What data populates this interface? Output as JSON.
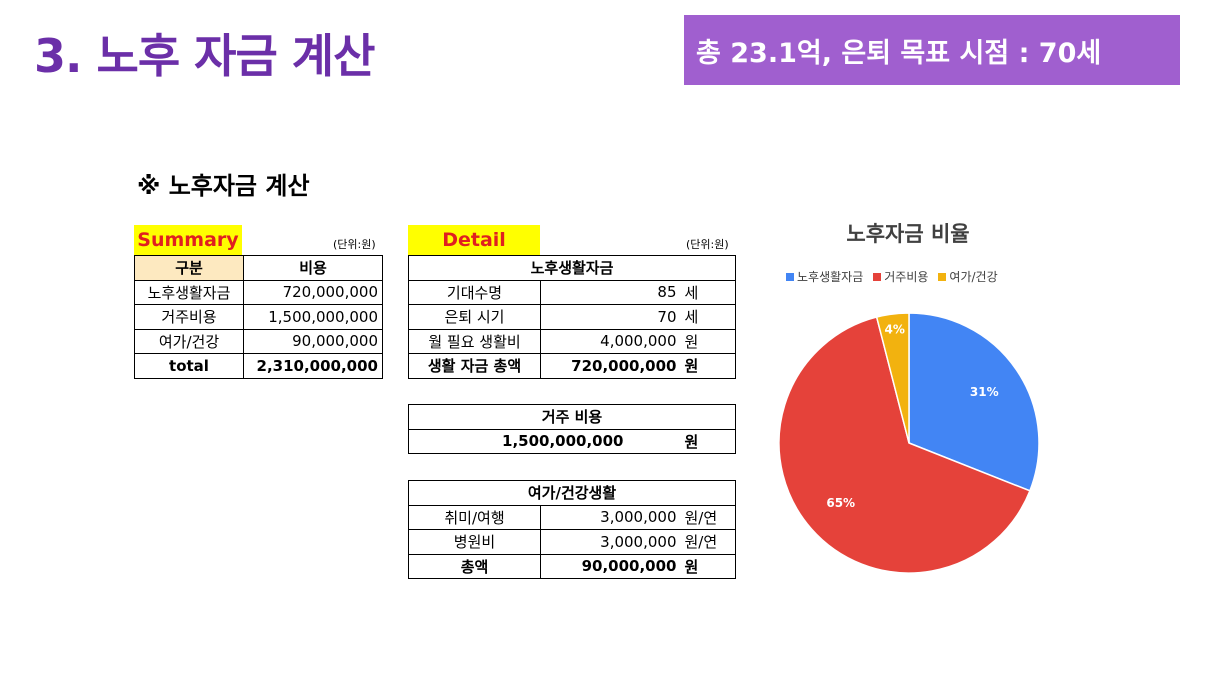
{
  "header": {
    "title": "3. 노후 자금 계산",
    "banner": "총 23.1억, 은퇴 목표 시점 : 70세"
  },
  "section": {
    "title": "※ 노후자금 계산"
  },
  "summary": {
    "tag": "Summary",
    "unit": "(단위:원)",
    "headers": [
      "구분",
      "비용"
    ],
    "rows": [
      {
        "label": "노후생활자금",
        "value": "720,000,000"
      },
      {
        "label": "거주비용",
        "value": "1,500,000,000"
      },
      {
        "label": "여가/건강",
        "value": "90,000,000"
      }
    ],
    "total": {
      "label": "total",
      "value": "2,310,000,000"
    }
  },
  "detail": {
    "tag": "Detail",
    "unit": "(단위:원)",
    "living": {
      "title": "노후생활자금",
      "rows": [
        {
          "label": "기대수명",
          "value": "85",
          "unit": "세"
        },
        {
          "label": "은퇴 시기",
          "value": "70",
          "unit": "세"
        },
        {
          "label": "월 필요 생활비",
          "value": "4,000,000",
          "unit": "원"
        }
      ],
      "total": {
        "label": "생활 자금 총액",
        "value": "720,000,000",
        "unit": "원"
      }
    },
    "housing": {
      "title": "거주 비용",
      "value": "1,500,000,000",
      "unit": "원"
    },
    "leisure": {
      "title": "여가/건강생활",
      "rows": [
        {
          "label": "취미/여행",
          "value": "3,000,000",
          "unit": "원/연"
        },
        {
          "label": "병원비",
          "value": "3,000,000",
          "unit": "원/연"
        }
      ],
      "total": {
        "label": "총액",
        "value": "90,000,000",
        "unit": "원"
      }
    }
  },
  "chart_data": {
    "type": "pie",
    "title": "노후자금 비율",
    "legend_position": "top",
    "categories": [
      "노후생활자금",
      "거주비용",
      "여가/건강"
    ],
    "values": [
      31,
      65,
      4
    ],
    "labels": [
      "31%",
      "65%",
      "4%"
    ],
    "colors": [
      "#4285f4",
      "#e5423a",
      "#f2b20f"
    ]
  }
}
